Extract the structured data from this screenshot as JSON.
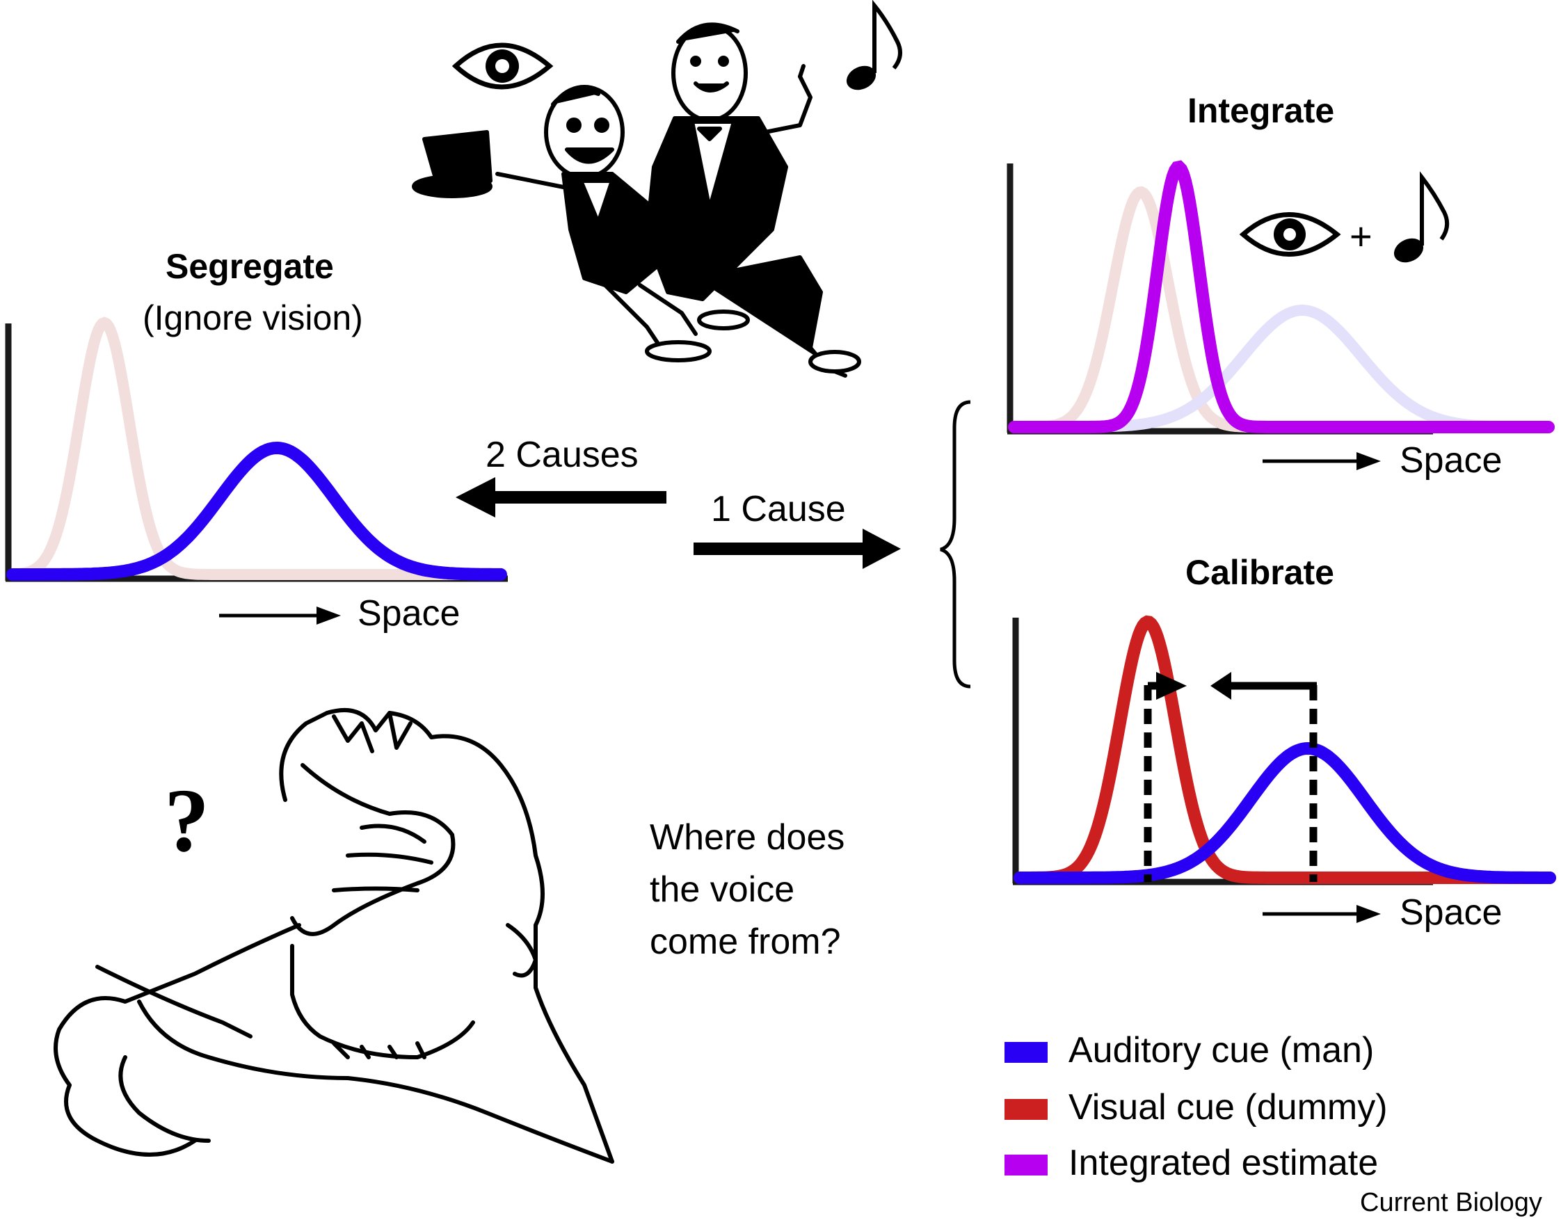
{
  "figure": {
    "segregate": {
      "title": "Segregate",
      "subtitle": "(Ignore vision)",
      "axis_label": "Space"
    },
    "integrate": {
      "title": "Integrate",
      "axis_label": "Space",
      "plus": "+"
    },
    "calibrate": {
      "title": "Calibrate",
      "axis_label": "Space"
    },
    "arrows": {
      "two_causes": "2 Causes",
      "one_cause": "1 Cause"
    },
    "question": {
      "mark": "?",
      "line1": "Where does",
      "line2": "the voice",
      "line3": "come from?"
    },
    "legend": [
      {
        "label": "Auditory cue (man)",
        "color": "#2a00f5"
      },
      {
        "label": "Visual cue (dummy)",
        "color": "#cc1f1f"
      },
      {
        "label": "Integrated estimate",
        "color": "#b800f0"
      }
    ],
    "credit": "Current Biology",
    "colors": {
      "auditory": "#2a00f5",
      "visual": "#cc1f1f",
      "integrated": "#b800f0",
      "visual_faded": "#f3dede",
      "auditory_faded": "#e2e0fb"
    },
    "icons": [
      "eye-icon",
      "music-note-icon",
      "ventriloquist-illustration",
      "confused-man-illustration"
    ]
  }
}
